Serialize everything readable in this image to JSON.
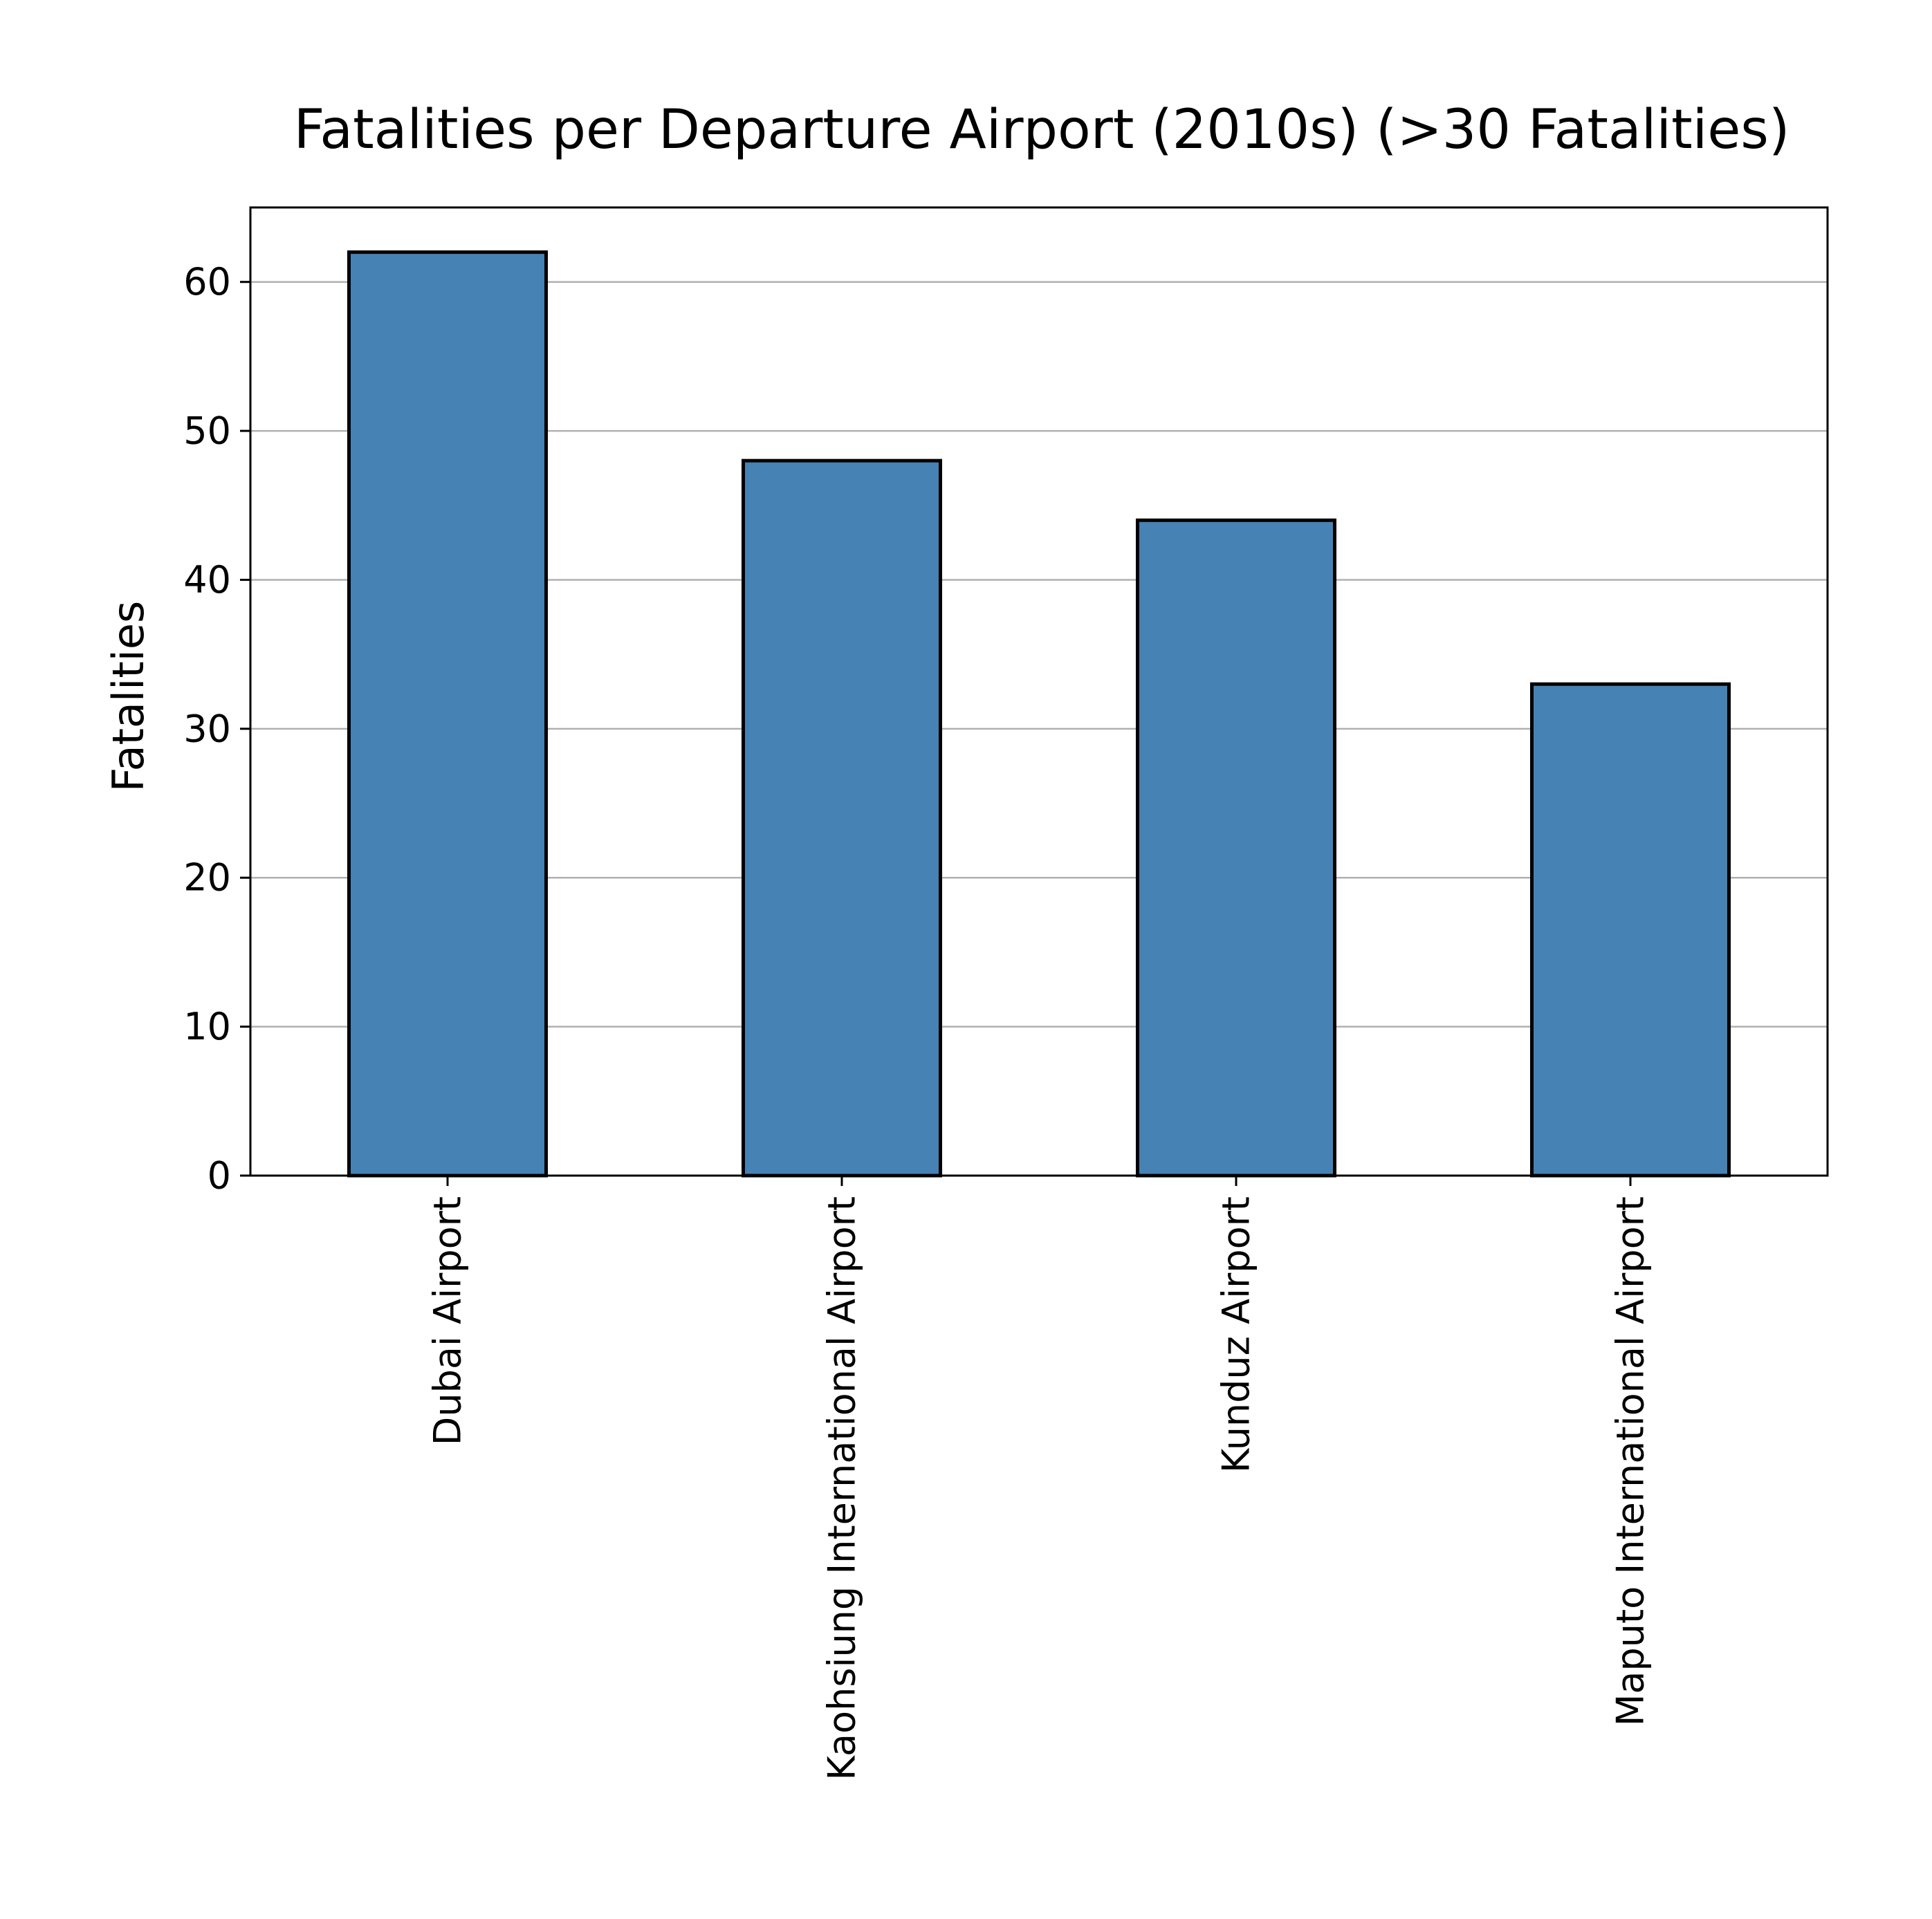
{
  "chart_data": {
    "type": "bar",
    "title": "Fatalities per Departure Airport (2010s) (>30 Fatalities)",
    "xlabel": "",
    "ylabel": "Fatalities",
    "categories": [
      "Dubai Airport",
      "Kaohsiung International Airport",
      "Kunduz Airport",
      "Maputo International Airport"
    ],
    "values": [
      62,
      48,
      44,
      33
    ],
    "ylim": [
      0,
      65
    ],
    "yticks": [
      0,
      10,
      20,
      30,
      40,
      50,
      60
    ],
    "grid": "y",
    "legend": "none",
    "bar_color": "#4682b4",
    "edge_color": "#000000",
    "grid_color": "#b0b0b0"
  }
}
